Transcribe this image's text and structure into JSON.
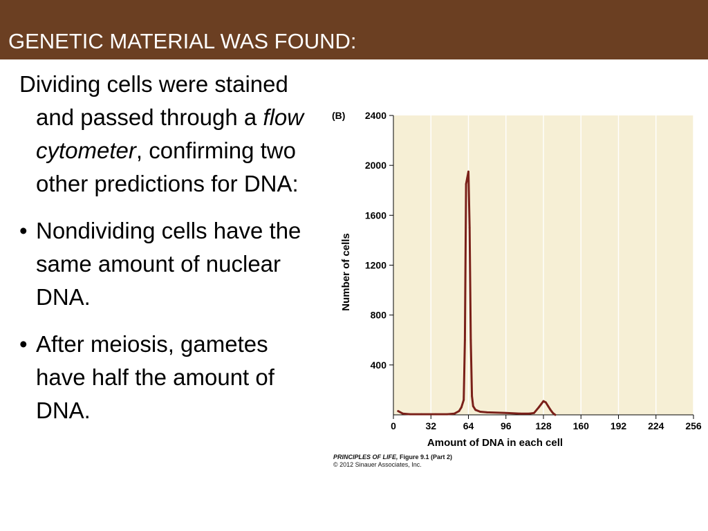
{
  "slide": {
    "title": "GENETIC MATERIAL WAS FOUND:",
    "colors": {
      "title_bar": "#6b3f22",
      "title_text": "#ffffff"
    }
  },
  "body": {
    "intro": {
      "before_em": "Dividing cells were stained and passed through a ",
      "em": "flow cytometer",
      "after_em": ", confirming two other predictions for DNA:"
    },
    "bullets": [
      {
        "marker": "•",
        "text": "Nondividing cells have the same amount of nuclear DNA."
      },
      {
        "marker": "•",
        "text": "After meiosis, gametes have half the amount of DNA."
      }
    ]
  },
  "figure": {
    "panel_label": "(B)",
    "credit": {
      "book": "PRINCIPLES OF LIFE,",
      "figure": " Figure 9.1 (Part 2)",
      "copyright": "© 2012 Sinauer Associates, Inc."
    }
  },
  "chart_data": {
    "type": "line",
    "title": "",
    "xlabel": "Amount of DNA in each cell",
    "ylabel": "Number of cells",
    "xlim": [
      0,
      256
    ],
    "ylim": [
      0,
      2400
    ],
    "xticks": [
      0,
      32,
      64,
      96,
      128,
      160,
      192,
      224,
      256
    ],
    "yticks": [
      400,
      800,
      1200,
      1600,
      2000,
      2400
    ],
    "grid": "vertical",
    "background": "#f6efd5",
    "line_color": "#7a2019",
    "series": [
      {
        "x": [
          4,
          8,
          14,
          24,
          36,
          46,
          52,
          56,
          58,
          60,
          61,
          62,
          63,
          64,
          65,
          66,
          67,
          68,
          70,
          74,
          80,
          96,
          108,
          116,
          120,
          124,
          128,
          130,
          132,
          134,
          136,
          138
        ],
        "y": [
          30,
          10,
          5,
          5,
          5,
          5,
          10,
          30,
          60,
          120,
          600,
          1850,
          1900,
          1950,
          1500,
          600,
          150,
          70,
          40,
          25,
          20,
          15,
          10,
          10,
          15,
          60,
          110,
          100,
          70,
          40,
          15,
          0
        ]
      }
    ]
  }
}
